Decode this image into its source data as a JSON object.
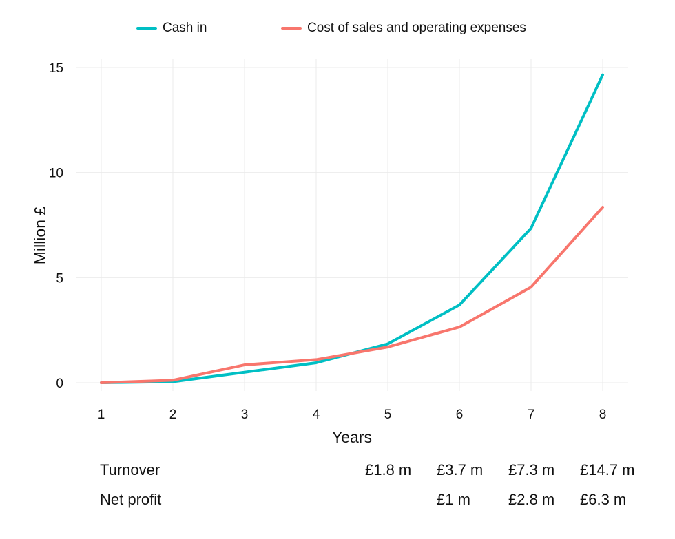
{
  "chart_data": {
    "type": "line",
    "x": [
      1,
      2,
      3,
      4,
      5,
      6,
      7,
      8
    ],
    "xlabel": "Years",
    "ylabel": "Million £",
    "ylim": [
      0,
      15
    ],
    "yticks": [
      0,
      5,
      10,
      15
    ],
    "xticks": [
      1,
      2,
      3,
      4,
      5,
      6,
      7,
      8
    ],
    "grid": true,
    "legend_position": "top",
    "series": [
      {
        "name": "Cash in",
        "color": "#00BFC4",
        "values": [
          0.0,
          0.05,
          0.5,
          0.95,
          1.85,
          3.7,
          7.35,
          14.65
        ]
      },
      {
        "name": "Cost of sales and operating expenses",
        "color": "#F8766D",
        "values": [
          0.0,
          0.12,
          0.85,
          1.1,
          1.7,
          2.65,
          4.55,
          8.35
        ]
      }
    ]
  },
  "table": {
    "rows": [
      {
        "label": "Turnover",
        "cells": [
          {
            "x": 5,
            "text": "£1.8 m"
          },
          {
            "x": 6,
            "text": "£3.7 m"
          },
          {
            "x": 7,
            "text": "£7.3 m"
          },
          {
            "x": 8,
            "text": "£14.7 m"
          }
        ]
      },
      {
        "label": "Net profit",
        "cells": [
          {
            "x": 6,
            "text": "£1 m"
          },
          {
            "x": 7,
            "text": "£2.8 m"
          },
          {
            "x": 8,
            "text": "£6.3 m"
          }
        ]
      }
    ]
  }
}
